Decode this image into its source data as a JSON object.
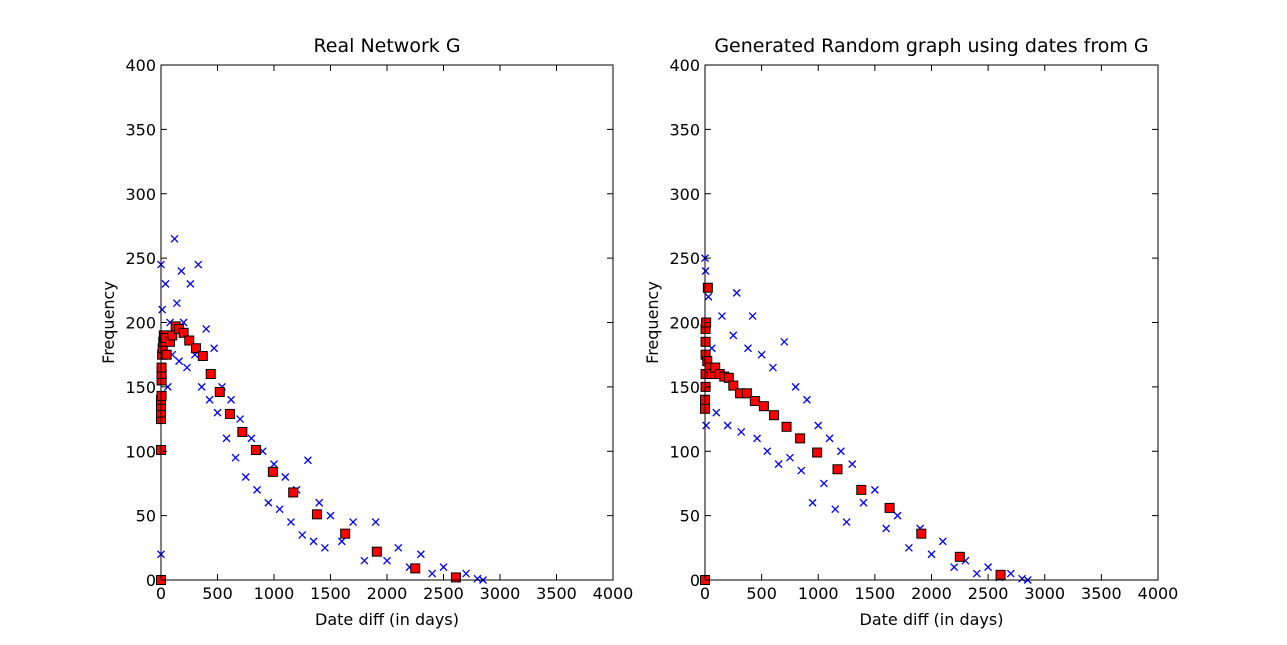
{
  "chart_data": [
    {
      "type": "scatter",
      "title": "Real Network G",
      "xlabel": "Date diff (in days)",
      "ylabel": "Frequency",
      "xlim": [
        0,
        4000
      ],
      "ylim": [
        0,
        400
      ],
      "xticks": [
        0,
        500,
        1000,
        1500,
        2000,
        2500,
        3000,
        3500,
        4000
      ],
      "yticks": [
        0,
        50,
        100,
        150,
        200,
        250,
        300,
        350,
        400
      ],
      "series": [
        {
          "color": "#0000ff",
          "marker": "x",
          "x": [
            0,
            0,
            10,
            20,
            40,
            60,
            80,
            100,
            120,
            140,
            160,
            180,
            200,
            230,
            260,
            300,
            330,
            360,
            400,
            430,
            470,
            500,
            540,
            580,
            620,
            660,
            700,
            750,
            800,
            850,
            900,
            950,
            1000,
            1050,
            1100,
            1150,
            1200,
            1250,
            1300,
            1350,
            1400,
            1450,
            1500,
            1600,
            1700,
            1800,
            1900,
            2000,
            2100,
            2200,
            2300,
            2400,
            2500,
            2600,
            2700,
            2800,
            2850
          ],
          "values": [
            245,
            20,
            210,
            160,
            230,
            150,
            200,
            175,
            265,
            215,
            170,
            240,
            200,
            165,
            230,
            175,
            245,
            150,
            195,
            140,
            180,
            130,
            150,
            110,
            140,
            95,
            125,
            80,
            110,
            70,
            100,
            60,
            90,
            55,
            80,
            45,
            70,
            35,
            93,
            30,
            60,
            25,
            50,
            30,
            45,
            15,
            45,
            15,
            25,
            10,
            20,
            5,
            10,
            2,
            5,
            1,
            0
          ]
        },
        {
          "color": "#ff0000",
          "marker": "s",
          "x": [
            0,
            0,
            0,
            0,
            0,
            5,
            5,
            5,
            5,
            10,
            15,
            20,
            25,
            30,
            50,
            80,
            100,
            130,
            160,
            200,
            250,
            310,
            370,
            440,
            520,
            610,
            720,
            840,
            990,
            1170,
            1380,
            1630,
            1910,
            2250,
            2610,
            0
          ],
          "values": [
            101,
            125,
            130,
            135,
            140,
            143,
            155,
            160,
            165,
            175,
            180,
            185,
            190,
            188,
            175,
            185,
            190,
            197,
            195,
            192,
            186,
            180,
            174,
            160,
            146,
            129,
            115,
            101,
            84,
            68,
            51,
            36,
            22,
            9,
            2,
            0
          ]
        }
      ]
    },
    {
      "type": "scatter",
      "title": "Generated Random graph using dates from G",
      "xlabel": "Date diff (in days)",
      "ylabel": "Frequency",
      "xlim": [
        0,
        4000
      ],
      "ylim": [
        0,
        400
      ],
      "xticks": [
        0,
        500,
        1000,
        1500,
        2000,
        2500,
        3000,
        3500,
        4000
      ],
      "yticks": [
        0,
        50,
        100,
        150,
        200,
        250,
        300,
        350,
        400
      ],
      "series": [
        {
          "color": "#0000ff",
          "marker": "x",
          "x": [
            0,
            5,
            10,
            30,
            60,
            100,
            150,
            200,
            250,
            280,
            320,
            380,
            420,
            460,
            500,
            550,
            600,
            650,
            700,
            750,
            800,
            850,
            900,
            950,
            1000,
            1050,
            1100,
            1150,
            1200,
            1250,
            1300,
            1400,
            1500,
            1600,
            1700,
            1800,
            1900,
            2000,
            2100,
            2200,
            2300,
            2400,
            2500,
            2600,
            2700,
            2800,
            2850
          ],
          "values": [
            250,
            240,
            120,
            220,
            180,
            130,
            205,
            120,
            190,
            223,
            115,
            180,
            205,
            110,
            175,
            100,
            165,
            90,
            185,
            95,
            150,
            85,
            140,
            60,
            120,
            75,
            110,
            55,
            100,
            45,
            90,
            60,
            70,
            40,
            50,
            25,
            40,
            20,
            30,
            10,
            15,
            5,
            10,
            2,
            5,
            1,
            0
          ]
        },
        {
          "color": "#ff0000",
          "marker": "s",
          "x": [
            0,
            0,
            0,
            5,
            5,
            5,
            5,
            5,
            10,
            25,
            20,
            40,
            60,
            90,
            130,
            170,
            210,
            250,
            310,
            370,
            440,
            520,
            610,
            720,
            840,
            990,
            1170,
            1380,
            1630,
            1910,
            2250,
            2610
          ],
          "values": [
            0,
            133,
            140,
            150,
            160,
            175,
            185,
            195,
            200,
            227,
            170,
            165,
            160,
            165,
            160,
            158,
            157,
            151,
            145,
            145,
            139,
            135,
            128,
            119,
            110,
            99,
            86,
            70,
            56,
            36,
            18,
            4
          ]
        }
      ]
    }
  ]
}
